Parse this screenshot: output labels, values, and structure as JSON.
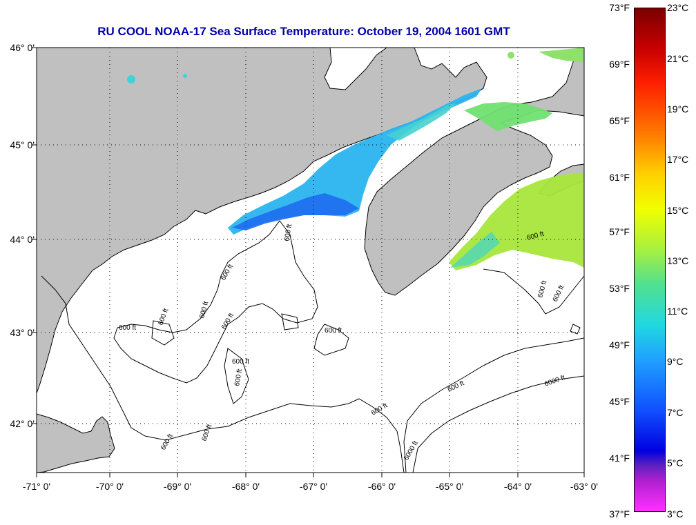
{
  "title": "RU COOL  NOAA-17  Sea Surface Temperature:  October 19, 2004 1601 GMT",
  "map": {
    "lat_labels": [
      "46° 0'",
      "45° 0'",
      "44° 0'",
      "43° 0'",
      "42° 0'"
    ],
    "lon_labels": [
      "-71° 0'",
      "-70° 0'",
      "-69° 0'",
      "-68° 0'",
      "-67° 0'",
      "-66° 0'",
      "-65° 0'",
      "-64° 0'",
      "-63° 0'"
    ],
    "contour_labels": [
      "600 ft",
      "600 ft",
      "600 ft",
      "600 ft",
      "600 ft",
      "600 ft",
      "600 ft",
      "600 ft",
      "600 ft",
      "600 ft",
      "600 ft",
      "600 ft",
      "600 ft",
      "600 ft",
      "6000 ft",
      "6000 ft",
      "600 ft",
      "600 ft"
    ],
    "colors": {
      "land": "#c0c0c0",
      "ocean": "#ffffff",
      "grid": "#000000",
      "coast": "#000000"
    }
  },
  "colorbar": {
    "fahrenheit_labels": [
      "73°F",
      "69°F",
      "65°F",
      "61°F",
      "57°F",
      "53°F",
      "49°F",
      "45°F",
      "41°F",
      "37°F"
    ],
    "celsius_labels": [
      "23°C",
      "21°C",
      "19°C",
      "17°C",
      "15°C",
      "13°C",
      "11°C",
      "9°C",
      "7°C",
      "5°C",
      "3°C"
    ]
  }
}
